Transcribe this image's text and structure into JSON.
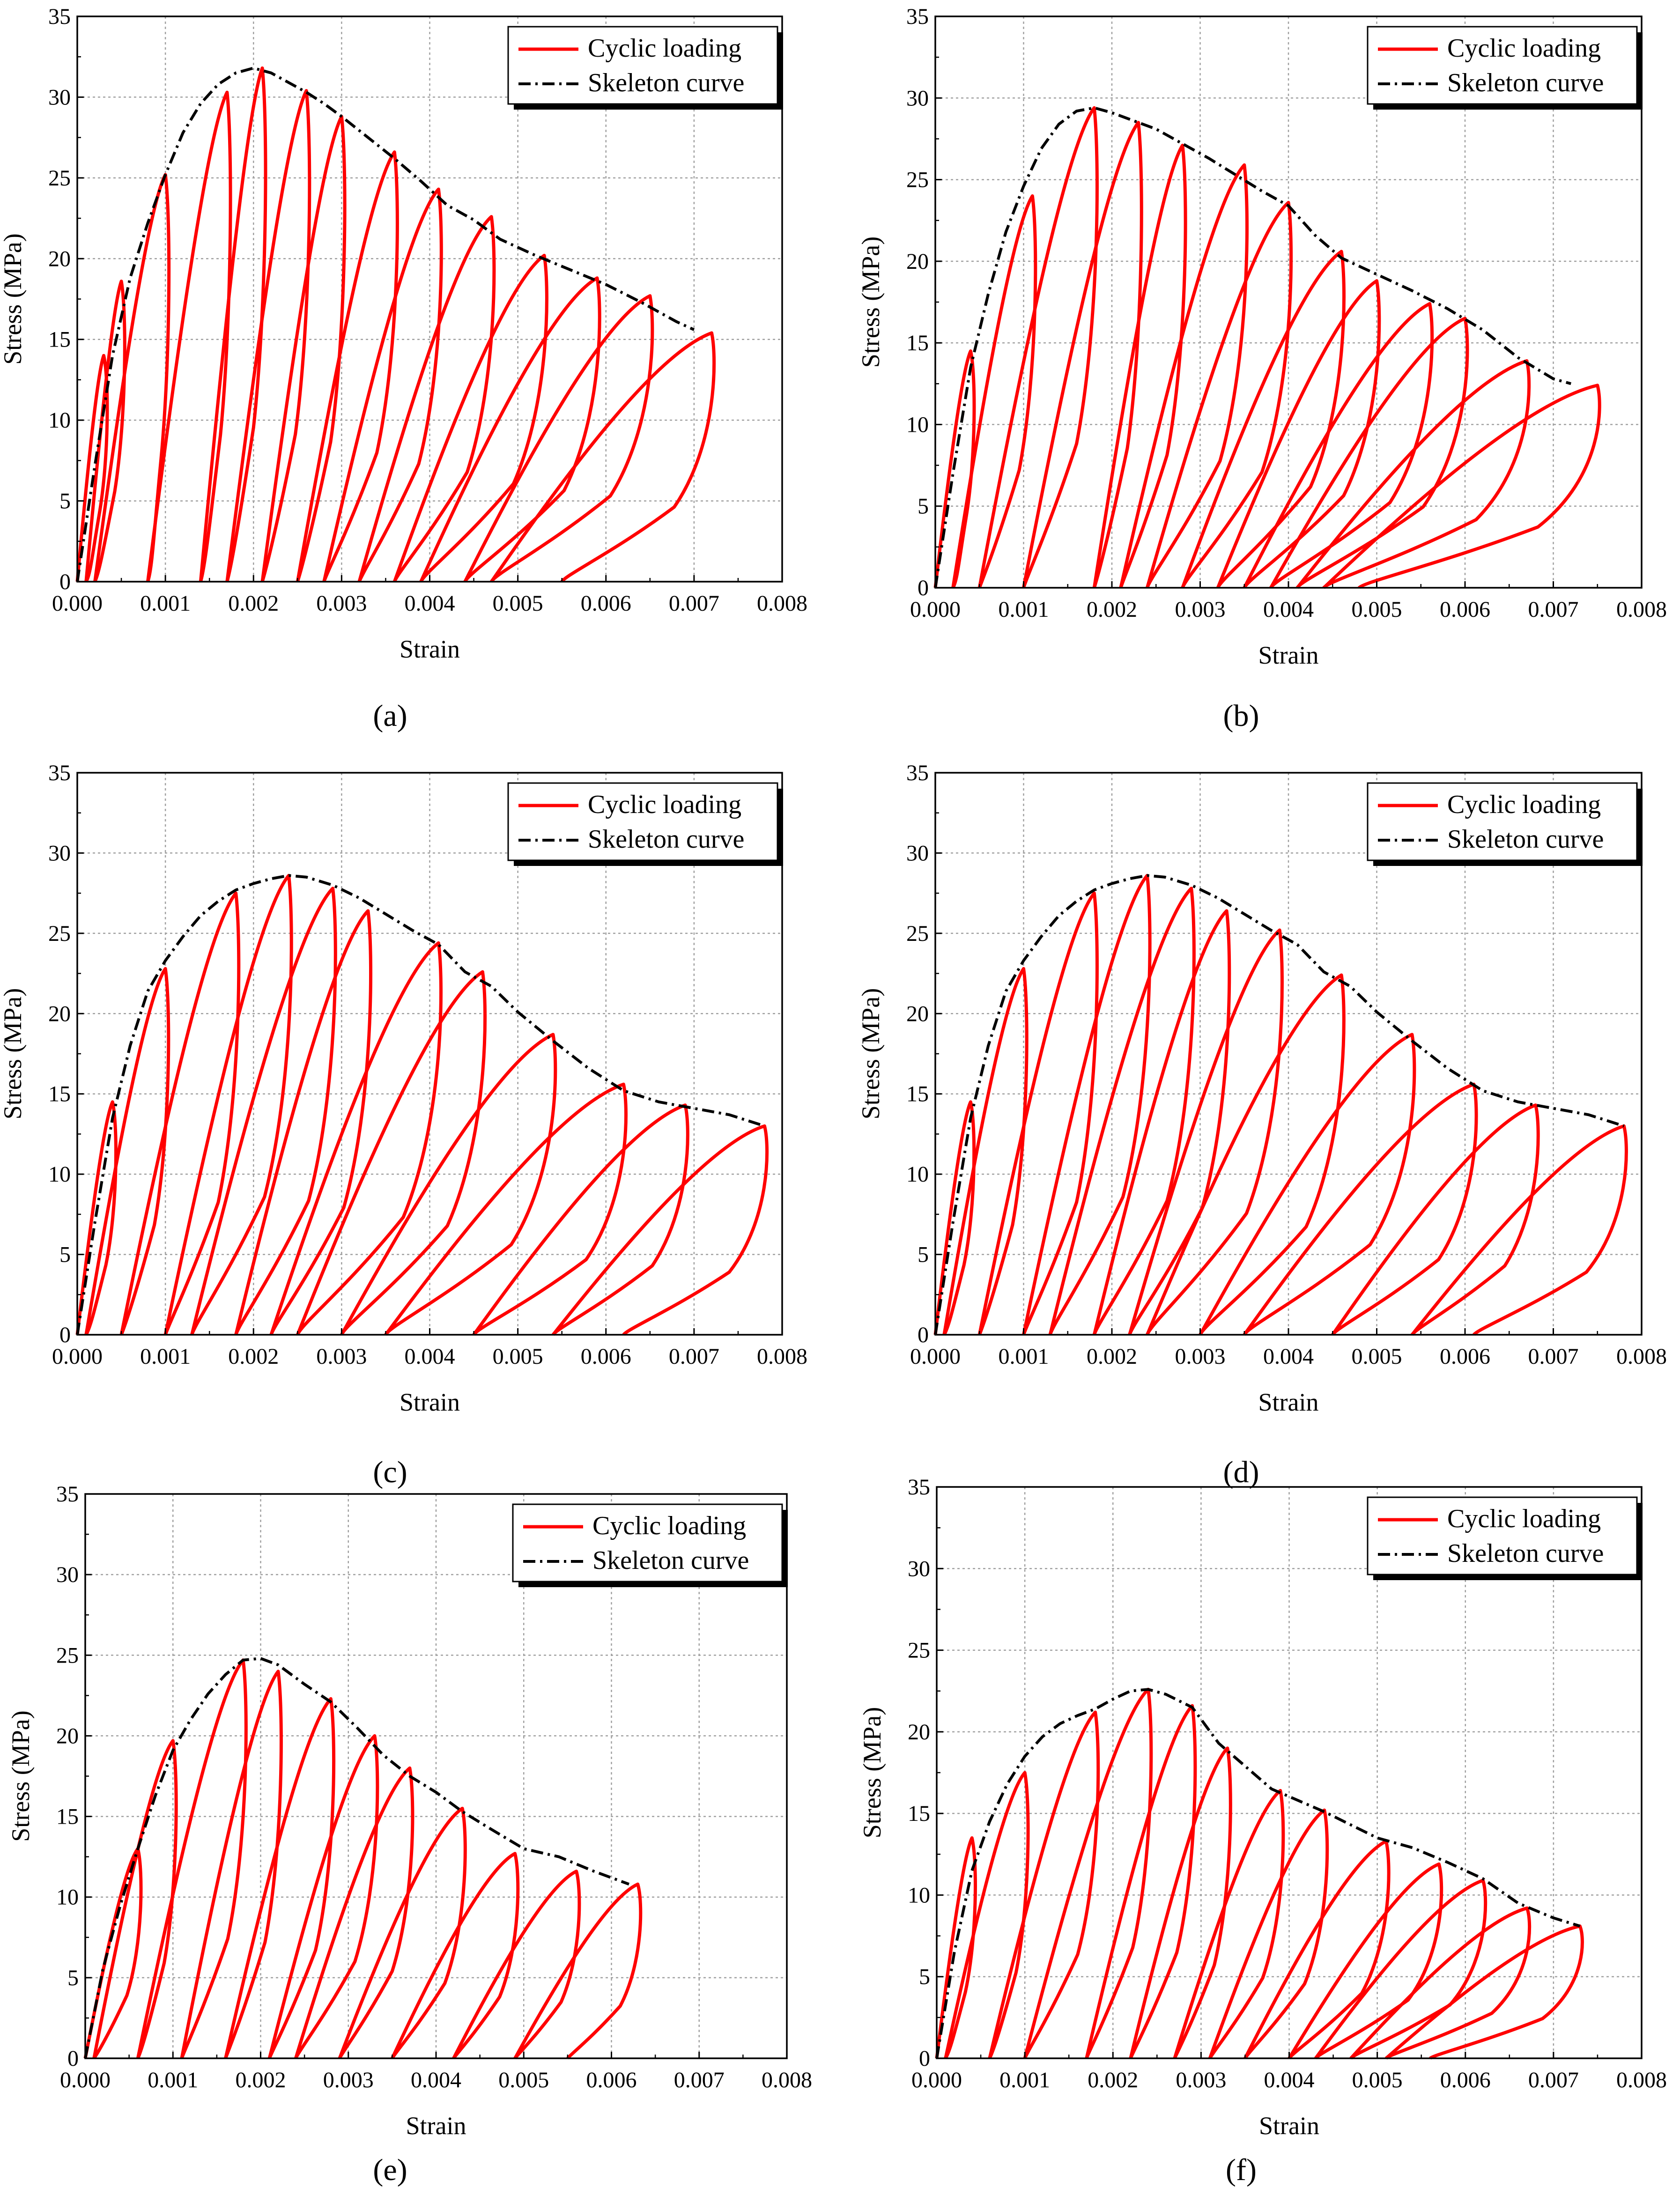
{
  "figure": {
    "colors": {
      "cyclic": "#ff0000",
      "skeleton": "#000000",
      "grid": "#a0a0a0",
      "axis": "#000000"
    }
  },
  "chart_data": [
    {
      "panel": "a",
      "type": "line",
      "xlabel": "Strain",
      "ylabel": "Stress (MPa)",
      "xlim": [
        0,
        0.008
      ],
      "ylim": [
        0,
        35
      ],
      "xticks": [
        "0.000",
        "0.001",
        "0.002",
        "0.003",
        "0.004",
        "0.005",
        "0.006",
        "0.007",
        "0.008"
      ],
      "yticks": [
        "0",
        "5",
        "10",
        "15",
        "20",
        "25",
        "30",
        "35"
      ],
      "grid": true,
      "legend_position": "top-right",
      "legend": [
        "Cyclic loading",
        "Skeleton curve"
      ],
      "series": [
        {
          "name": "Skeleton curve",
          "x": [
            0,
            0.0002,
            0.0004,
            0.0006,
            0.0008,
            0.001,
            0.0012,
            0.0014,
            0.0016,
            0.0018,
            0.002,
            0.0022,
            0.0024,
            0.0026,
            0.0028,
            0.003,
            0.0033,
            0.0036,
            0.0039,
            0.0042,
            0.0045,
            0.0048,
            0.0052,
            0.0056,
            0.006,
            0.0064,
            0.0068,
            0.007
          ],
          "y": [
            0,
            7.2,
            14,
            18.8,
            22.2,
            25.2,
            27.8,
            29.6,
            30.8,
            31.5,
            31.8,
            31.5,
            30.9,
            30.3,
            29.6,
            28.8,
            27.5,
            26.2,
            24.8,
            23.3,
            22.4,
            21.2,
            20.2,
            19.3,
            18.4,
            17.3,
            16.1,
            15.6
          ]
        },
        {
          "name": "Cyclic loading",
          "peaks": [
            [
              0.0003,
              14
            ],
            [
              0.0005,
              18.6
            ],
            [
              0.001,
              25.2
            ],
            [
              0.0017,
              30.3
            ],
            [
              0.0021,
              31.8
            ],
            [
              0.0026,
              30.4
            ],
            [
              0.003,
              28.8
            ],
            [
              0.0036,
              26.6
            ],
            [
              0.0041,
              24.3
            ],
            [
              0.0047,
              22.6
            ],
            [
              0.0053,
              20.2
            ],
            [
              0.0059,
              18.8
            ],
            [
              0.0065,
              17.7
            ],
            [
              0.0072,
              15.4
            ]
          ],
          "residuals": [
            0.0001,
            0.0002,
            0.0008,
            0.0014,
            0.0017,
            0.0021,
            0.0025,
            0.0028,
            0.0032,
            0.0036,
            0.0039,
            0.0044,
            0.0047,
            0.0055
          ]
        }
      ]
    },
    {
      "panel": "b",
      "type": "line",
      "xlabel": "Strain",
      "ylabel": "Stress (MPa)",
      "xlim": [
        0,
        0.008
      ],
      "ylim": [
        0,
        35
      ],
      "xticks": [
        "0.000",
        "0.001",
        "0.002",
        "0.003",
        "0.004",
        "0.005",
        "0.006",
        "0.007",
        "0.008"
      ],
      "yticks": [
        "0",
        "5",
        "10",
        "15",
        "20",
        "25",
        "30",
        "35"
      ],
      "grid": true,
      "legend_position": "top-right",
      "legend": [
        "Cyclic loading",
        "Skeleton curve"
      ],
      "series": [
        {
          "name": "Skeleton curve",
          "x": [
            0,
            0.0002,
            0.0004,
            0.0006,
            0.0008,
            0.001,
            0.0012,
            0.0014,
            0.0016,
            0.0018,
            0.002,
            0.0022,
            0.0025,
            0.0028,
            0.0031,
            0.0034,
            0.0037,
            0.004,
            0.0043,
            0.0046,
            0.005,
            0.0054,
            0.0058,
            0.0062,
            0.0066,
            0.007,
            0.0072
          ],
          "y": [
            0,
            7,
            13.5,
            18,
            21.8,
            24.6,
            26.9,
            28.4,
            29.2,
            29.4,
            29.1,
            28.7,
            28.1,
            27.2,
            26.3,
            25.3,
            24.3,
            23.4,
            21.6,
            20.2,
            19.2,
            18.2,
            17.1,
            15.8,
            14.1,
            12.8,
            12.5
          ]
        },
        {
          "name": "Cyclic loading",
          "peaks": [
            [
              0.0004,
              14.5
            ],
            [
              0.0011,
              24
            ],
            [
              0.0018,
              29.4
            ],
            [
              0.0023,
              28.5
            ],
            [
              0.0028,
              27.1
            ],
            [
              0.0035,
              25.9
            ],
            [
              0.004,
              23.6
            ],
            [
              0.0046,
              20.6
            ],
            [
              0.005,
              18.8
            ],
            [
              0.0056,
              17.4
            ],
            [
              0.006,
              16.5
            ],
            [
              0.0067,
              13.9
            ],
            [
              0.0075,
              12.4
            ]
          ],
          "residuals": [
            0.0002,
            0.0005,
            0.001,
            0.0018,
            0.0021,
            0.0024,
            0.0028,
            0.0032,
            0.0035,
            0.0038,
            0.0041,
            0.0044,
            0.0048
          ]
        }
      ]
    },
    {
      "panel": "c",
      "type": "line",
      "xlabel": "Strain",
      "ylabel": "Stress (MPa)",
      "xlim": [
        0,
        0.008
      ],
      "ylim": [
        0,
        35
      ],
      "xticks": [
        "0.000",
        "0.001",
        "0.002",
        "0.003",
        "0.004",
        "0.005",
        "0.006",
        "0.007",
        "0.008"
      ],
      "yticks": [
        "0",
        "5",
        "10",
        "15",
        "20",
        "25",
        "30",
        "35"
      ],
      "grid": true,
      "legend_position": "top-right",
      "legend": [
        "Cyclic loading",
        "Skeleton curve"
      ],
      "series": [
        {
          "name": "Skeleton curve",
          "x": [
            0,
            0.0002,
            0.0004,
            0.0006,
            0.0008,
            0.001,
            0.0012,
            0.0014,
            0.0016,
            0.0018,
            0.002,
            0.0022,
            0.0024,
            0.0026,
            0.0029,
            0.0032,
            0.0035,
            0.0038,
            0.0041,
            0.0044,
            0.0047,
            0.005,
            0.0054,
            0.0058,
            0.0062,
            0.0066,
            0.007,
            0.0074,
            0.0078
          ],
          "y": [
            0,
            7,
            13.5,
            18,
            21.4,
            23.3,
            24.8,
            26.1,
            27,
            27.7,
            28.1,
            28.4,
            28.6,
            28.5,
            28,
            27.2,
            26.2,
            25.2,
            24.3,
            22.6,
            21.7,
            20.1,
            18.3,
            16.6,
            15.2,
            14.5,
            14.1,
            13.7,
            13
          ]
        },
        {
          "name": "Cyclic loading",
          "peaks": [
            [
              0.0004,
              14.5
            ],
            [
              0.001,
              22.8
            ],
            [
              0.0018,
              27.5
            ],
            [
              0.0024,
              28.6
            ],
            [
              0.0029,
              27.8
            ],
            [
              0.0033,
              26.4
            ],
            [
              0.0041,
              24.4
            ],
            [
              0.0046,
              22.6
            ],
            [
              0.0054,
              18.7
            ],
            [
              0.0062,
              15.6
            ],
            [
              0.0069,
              14.3
            ],
            [
              0.0078,
              13
            ]
          ],
          "residuals": [
            0.0001,
            0.0005,
            0.001,
            0.0013,
            0.0018,
            0.0022,
            0.0025,
            0.003,
            0.0035,
            0.0045,
            0.0054,
            0.0062
          ]
        }
      ]
    },
    {
      "panel": "d",
      "type": "line",
      "xlabel": "Strain",
      "ylabel": "Stress (MPa)",
      "xlim": [
        0,
        0.008
      ],
      "ylim": [
        0,
        35
      ],
      "xticks": [
        "0.000",
        "0.001",
        "0.002",
        "0.003",
        "0.004",
        "0.005",
        "0.006",
        "0.007",
        "0.008"
      ],
      "yticks": [
        "0",
        "5",
        "10",
        "15",
        "20",
        "25",
        "30",
        "35"
      ],
      "grid": true,
      "legend_position": "top-right",
      "legend": [
        "Cyclic loading",
        "Skeleton curve"
      ],
      "series": [
        {
          "name": "Skeleton curve",
          "x": [
            0,
            0.0002,
            0.0004,
            0.0006,
            0.0008,
            0.001,
            0.0012,
            0.0014,
            0.0016,
            0.0018,
            0.002,
            0.0022,
            0.0024,
            0.0026,
            0.0029,
            0.0032,
            0.0035,
            0.0038,
            0.0041,
            0.0044,
            0.0047,
            0.005,
            0.0054,
            0.0058,
            0.0062,
            0.0066,
            0.007,
            0.0074,
            0.0078
          ],
          "y": [
            0,
            7,
            13.5,
            18,
            21.4,
            23.3,
            24.8,
            26.1,
            27,
            27.7,
            28.1,
            28.4,
            28.6,
            28.5,
            28,
            27.2,
            26.2,
            25.2,
            24.3,
            22.6,
            21.7,
            20.1,
            18.3,
            16.6,
            15.2,
            14.5,
            14.1,
            13.7,
            13
          ]
        },
        {
          "name": "Cyclic loading",
          "peaks": [
            [
              0.0004,
              14.5
            ],
            [
              0.001,
              22.8
            ],
            [
              0.0018,
              27.5
            ],
            [
              0.0024,
              28.6
            ],
            [
              0.0029,
              27.8
            ],
            [
              0.0033,
              26.4
            ],
            [
              0.0039,
              25.2
            ],
            [
              0.0046,
              22.4
            ],
            [
              0.0054,
              18.7
            ],
            [
              0.0061,
              15.6
            ],
            [
              0.0068,
              14.3
            ],
            [
              0.0078,
              13
            ]
          ],
          "residuals": [
            0.0001,
            0.0005,
            0.001,
            0.0013,
            0.0018,
            0.0022,
            0.0024,
            0.003,
            0.0035,
            0.0045,
            0.0054,
            0.0061
          ]
        }
      ]
    },
    {
      "panel": "e",
      "type": "line",
      "xlabel": "Strain",
      "ylabel": "Stress (MPa)",
      "xlim": [
        0,
        0.008
      ],
      "ylim": [
        0,
        35
      ],
      "xticks": [
        "0.000",
        "0.001",
        "0.002",
        "0.003",
        "0.004",
        "0.005",
        "0.006",
        "0.007",
        "0.008"
      ],
      "yticks": [
        "0",
        "5",
        "10",
        "15",
        "20",
        "25",
        "30",
        "35"
      ],
      "grid": true,
      "legend_position": "top-right",
      "legend": [
        "Cyclic loading",
        "Skeleton curve"
      ],
      "series": [
        {
          "name": "Skeleton curve",
          "x": [
            0,
            0.0002,
            0.0004,
            0.0006,
            0.0008,
            0.001,
            0.0012,
            0.0014,
            0.0016,
            0.0018,
            0.002,
            0.0022,
            0.0025,
            0.0028,
            0.0031,
            0.0034,
            0.0037,
            0.004,
            0.0043,
            0.0046,
            0.005,
            0.0054,
            0.0058,
            0.0062
          ],
          "y": [
            0,
            5.5,
            9.5,
            13,
            16.3,
            19.1,
            21,
            22.6,
            23.8,
            24.7,
            24.8,
            24.4,
            23.2,
            22.1,
            20.5,
            18.8,
            17.5,
            16.5,
            15.3,
            14.3,
            13,
            12.5,
            11.6,
            10.8
          ]
        },
        {
          "name": "Cyclic loading",
          "peaks": [
            [
              0.0006,
              13
            ],
            [
              0.001,
              19.7
            ],
            [
              0.0018,
              24.7
            ],
            [
              0.0022,
              24
            ],
            [
              0.0028,
              22.3
            ],
            [
              0.0033,
              20
            ],
            [
              0.0037,
              18
            ],
            [
              0.0043,
              15.5
            ],
            [
              0.0049,
              12.7
            ],
            [
              0.0056,
              11.6
            ],
            [
              0.0063,
              10.8
            ]
          ],
          "residuals": [
            0.0001,
            0.0006,
            0.0011,
            0.0016,
            0.0021,
            0.0024,
            0.0029,
            0.0035,
            0.0042,
            0.0049,
            0.0055
          ]
        }
      ]
    },
    {
      "panel": "f",
      "type": "line",
      "xlabel": "Strain",
      "ylabel": "Stress (MPa)",
      "xlim": [
        0,
        0.008
      ],
      "ylim": [
        0,
        35
      ],
      "xticks": [
        "0.000",
        "0.001",
        "0.002",
        "0.003",
        "0.004",
        "0.005",
        "0.006",
        "0.007",
        "0.008"
      ],
      "yticks": [
        "0",
        "5",
        "10",
        "15",
        "20",
        "25",
        "30",
        "35"
      ],
      "grid": true,
      "legend_position": "top-right",
      "legend": [
        "Cyclic loading",
        "Skeleton curve"
      ],
      "series": [
        {
          "name": "Skeleton curve",
          "x": [
            0,
            0.0002,
            0.0004,
            0.0006,
            0.0008,
            0.001,
            0.0012,
            0.0014,
            0.0016,
            0.0018,
            0.002,
            0.0022,
            0.0024,
            0.0026,
            0.0029,
            0.0032,
            0.0035,
            0.0038,
            0.0041,
            0.0044,
            0.0047,
            0.005,
            0.0054,
            0.0058,
            0.0062,
            0.0066,
            0.007,
            0.0073
          ],
          "y": [
            0,
            6.5,
            11.5,
            14.5,
            16.8,
            18.5,
            19.7,
            20.5,
            21,
            21.4,
            22,
            22.5,
            22.6,
            22.3,
            21.5,
            19.3,
            17.9,
            16.5,
            15.8,
            15.1,
            14.3,
            13.5,
            12.9,
            12,
            11,
            9.5,
            8.6,
            8.1
          ]
        },
        {
          "name": "Cyclic loading",
          "peaks": [
            [
              0.0004,
              13.5
            ],
            [
              0.001,
              17.5
            ],
            [
              0.0018,
              21.2
            ],
            [
              0.0024,
              22.6
            ],
            [
              0.0029,
              21.6
            ],
            [
              0.0033,
              19
            ],
            [
              0.0039,
              16.4
            ],
            [
              0.0044,
              15.2
            ],
            [
              0.0051,
              13.3
            ],
            [
              0.0057,
              11.9
            ],
            [
              0.0062,
              10.9
            ],
            [
              0.0067,
              9.2
            ],
            [
              0.0073,
              8.1
            ]
          ],
          "residuals": [
            0.0001,
            0.0006,
            0.001,
            0.0017,
            0.0022,
            0.0027,
            0.0031,
            0.0035,
            0.004,
            0.0043,
            0.0047,
            0.0051,
            0.0056
          ]
        }
      ]
    }
  ],
  "panel_labels": [
    "(a)",
    "(b)",
    "(c)",
    "(d)",
    "(e)",
    "(f)"
  ]
}
